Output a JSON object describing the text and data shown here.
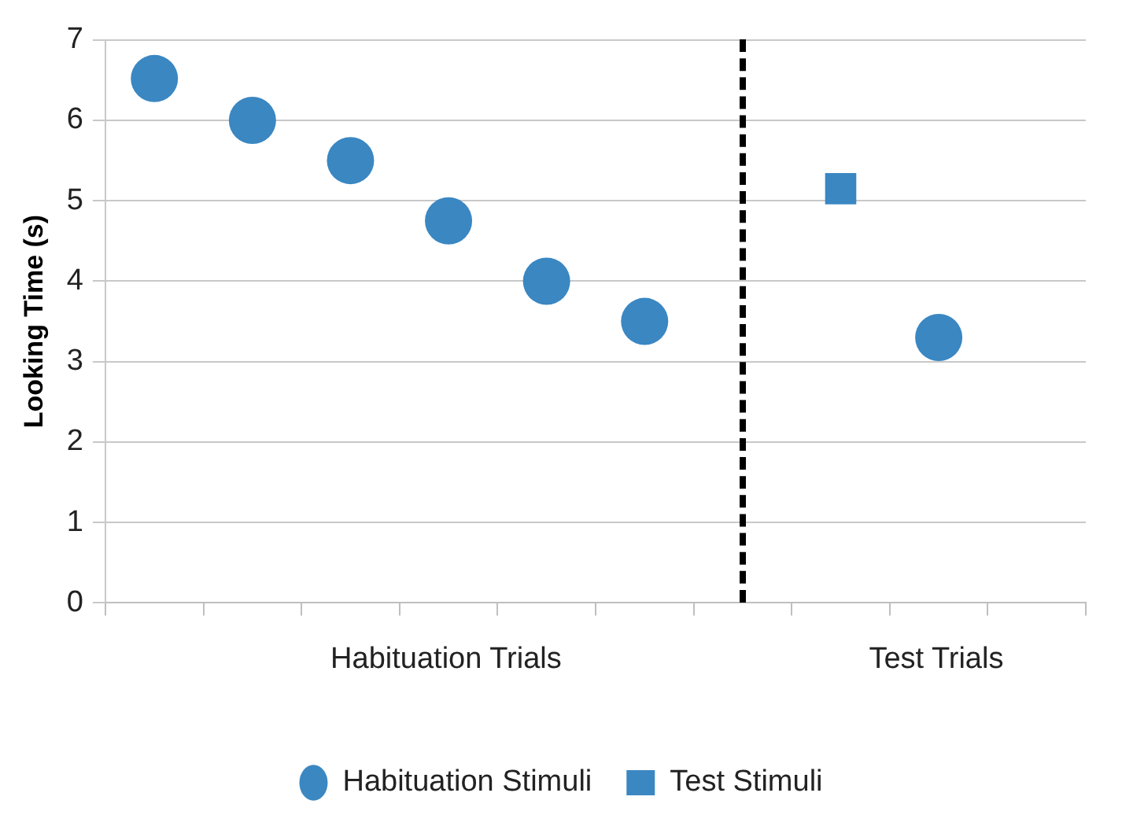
{
  "chart_data": {
    "type": "scatter",
    "ylabel": "Looking Time (s)",
    "ylim": [
      0,
      7
    ],
    "yticks": [
      0,
      1,
      2,
      3,
      4,
      5,
      6,
      7
    ],
    "categories": [
      null,
      null,
      null,
      null,
      null,
      null,
      null,
      null,
      null,
      null
    ],
    "series": [
      {
        "name": "Habituation Stimuli",
        "color": "#3a87c2",
        "marker": "circle",
        "values": [
          6.52,
          6.0,
          5.5,
          4.75,
          4.0,
          3.5,
          null,
          null,
          3.3,
          null
        ]
      },
      {
        "name": "Test Stimuli",
        "color": "#3a87c2",
        "marker": "square",
        "values": [
          null,
          null,
          null,
          null,
          null,
          null,
          null,
          5.15,
          null,
          null
        ]
      }
    ],
    "annotations": [
      "Habituation Trials",
      "Test Trials"
    ],
    "grid": "y",
    "legend": "bottom"
  }
}
